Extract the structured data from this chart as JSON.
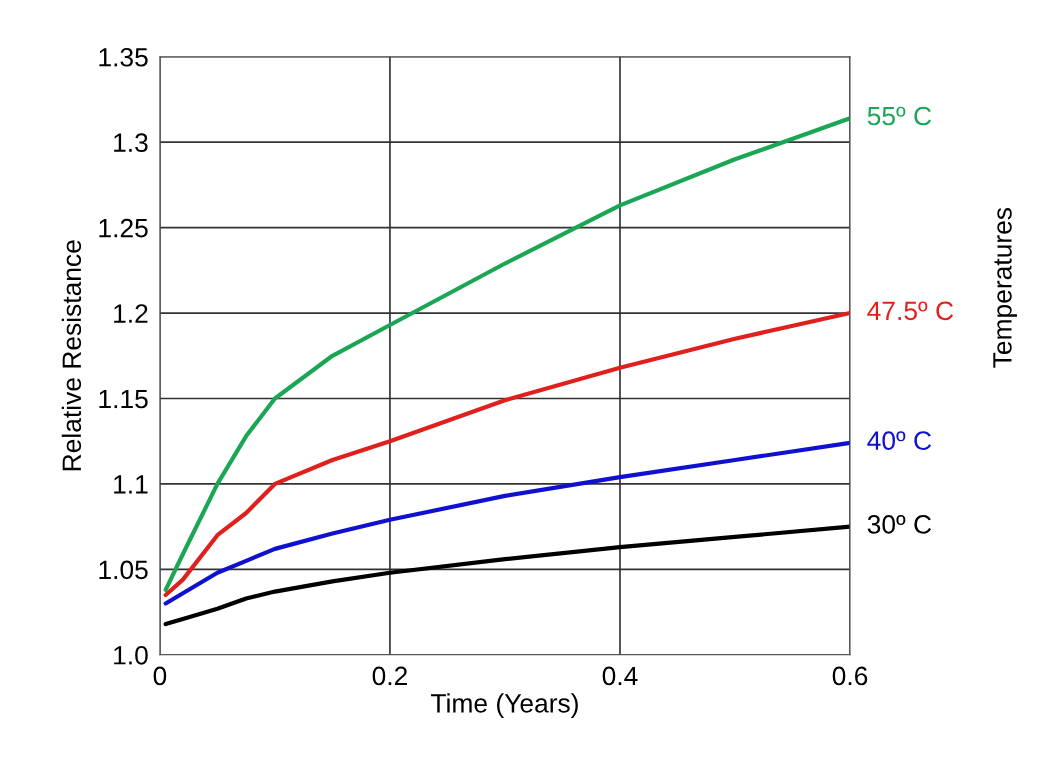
{
  "chart_data": {
    "type": "line",
    "xlabel": "Time (Years)",
    "ylabel": "Relative Resistance",
    "annotations": [
      "Temperatures"
    ],
    "x": [
      0.005,
      0.02,
      0.05,
      0.075,
      0.1,
      0.15,
      0.2,
      0.3,
      0.4,
      0.5,
      0.6
    ],
    "series": [
      {
        "name": "55º C",
        "color": "#1aa654",
        "values": [
          1.038,
          1.059,
          1.1,
          1.128,
          1.15,
          1.175,
          1.193,
          1.229,
          1.263,
          1.29,
          1.314
        ]
      },
      {
        "name": "47.5º C",
        "color": "#e0201c",
        "values": [
          1.035,
          1.044,
          1.07,
          1.083,
          1.1,
          1.114,
          1.125,
          1.149,
          1.168,
          1.185,
          1.2
        ]
      },
      {
        "name": "40º C",
        "color": "#1010d0",
        "values": [
          1.03,
          1.036,
          1.048,
          1.055,
          1.062,
          1.071,
          1.079,
          1.093,
          1.104,
          1.114,
          1.124
        ]
      },
      {
        "name": "30º C",
        "color": "#000000",
        "values": [
          1.018,
          1.021,
          1.027,
          1.033,
          1.037,
          1.043,
          1.048,
          1.056,
          1.063,
          1.069,
          1.075
        ]
      }
    ],
    "xlim": [
      0,
      0.6
    ],
    "xticks": [
      0,
      0.2,
      0.4,
      0.6
    ],
    "ylim": [
      1.0,
      1.35
    ],
    "yticks": [
      {
        "value": 1.0,
        "label": "1.0"
      },
      1.05,
      1.1,
      1.15,
      1.2,
      1.25,
      1.3,
      1.35
    ],
    "grid": true,
    "marker": "none",
    "line_style": "solid",
    "legend": false
  }
}
